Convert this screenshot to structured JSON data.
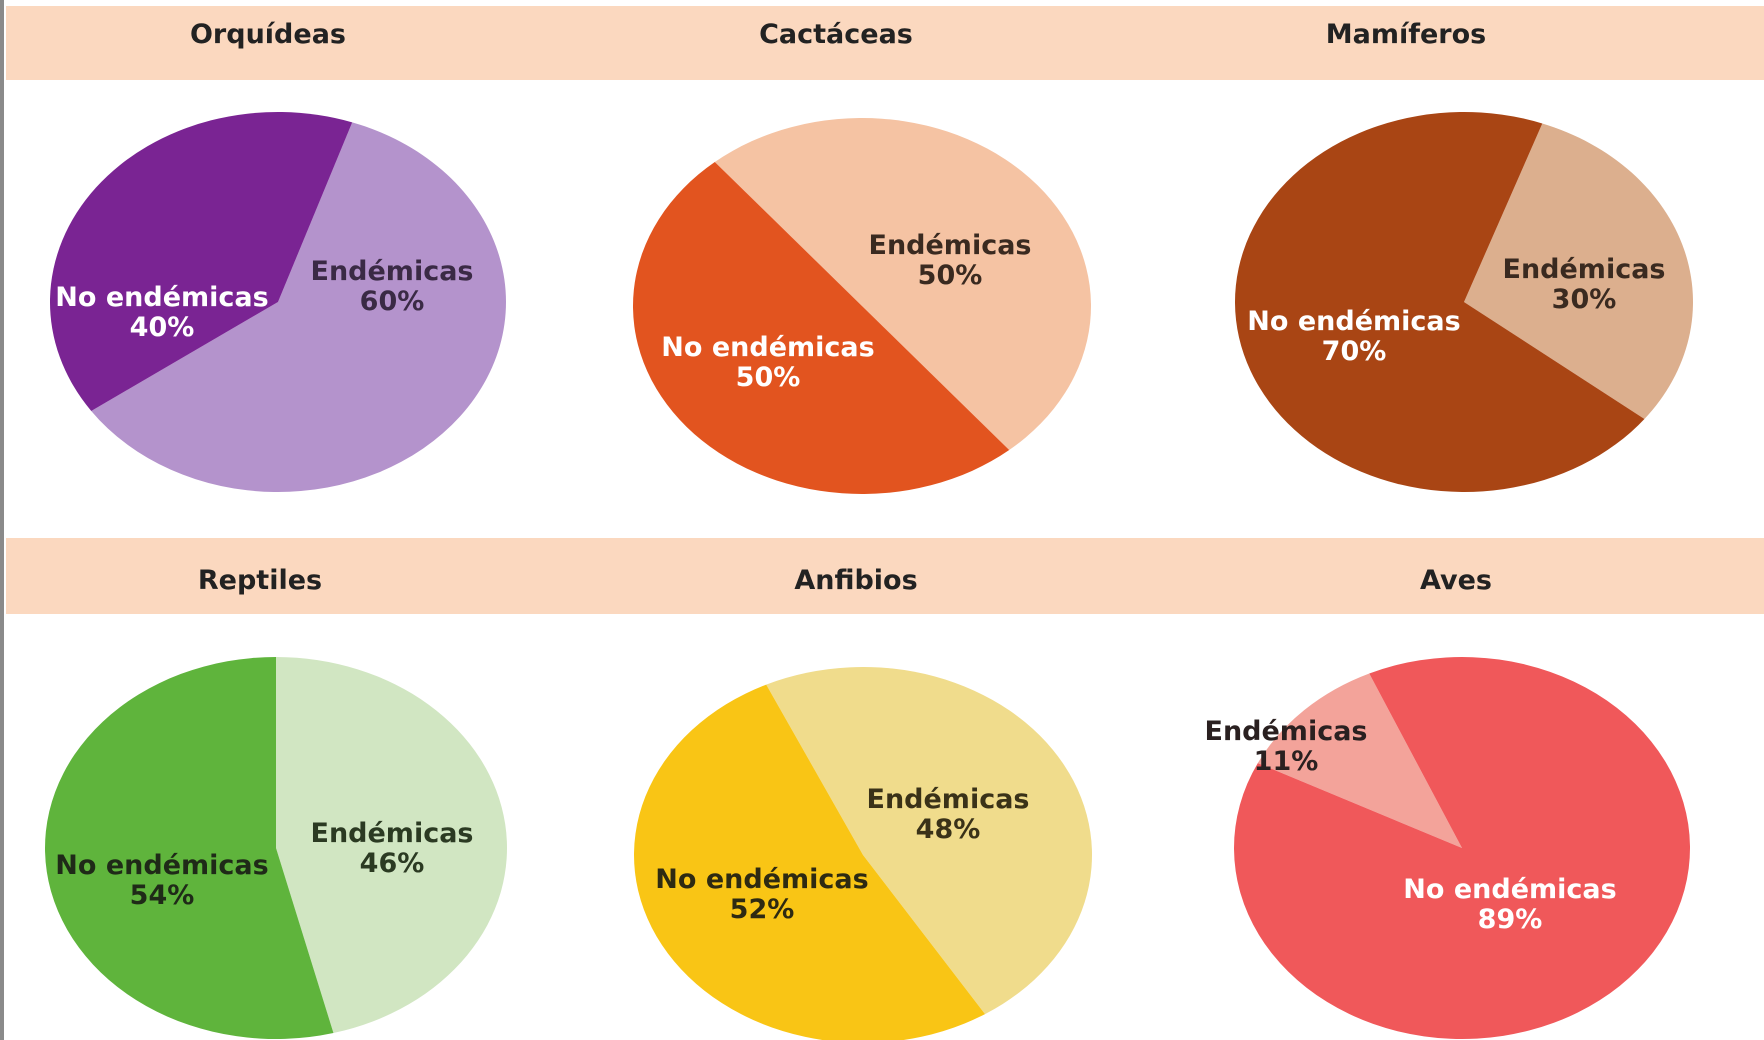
{
  "chart_data": [
    {
      "type": "pie",
      "title": "Orquídeas",
      "slices": [
        {
          "label": "Endémicas",
          "value": 60,
          "value_text": "60%",
          "color": "#b493cc",
          "text_color": "#3a2a45"
        },
        {
          "label": "No endémicas",
          "value": 40,
          "value_text": "40%",
          "color": "#7a2493",
          "text_color": "#ffffff"
        }
      ]
    },
    {
      "type": "pie",
      "title": "Cactáceas",
      "slices": [
        {
          "label": "Endémicas",
          "value": 50,
          "value_text": "50%",
          "color": "#f5c3a3",
          "text_color": "#3a2a20"
        },
        {
          "label": "No endémicas",
          "value": 50,
          "value_text": "50%",
          "color": "#e2541f",
          "text_color": "#ffffff"
        }
      ]
    },
    {
      "type": "pie",
      "title": "Mamíferos",
      "slices": [
        {
          "label": "Endémicas",
          "value": 30,
          "value_text": "30%",
          "color": "#dcaf8e",
          "text_color": "#3a2a20"
        },
        {
          "label": "No endémicas",
          "value": 70,
          "value_text": "70%",
          "color": "#a94514",
          "text_color": "#ffffff"
        }
      ]
    },
    {
      "type": "pie",
      "title": "Reptiles",
      "slices": [
        {
          "label": "Endémicas",
          "value": 46,
          "value_text": "46%",
          "color": "#d1e6c2",
          "text_color": "#2b3a22"
        },
        {
          "label": "No endémicas",
          "value": 54,
          "value_text": "54%",
          "color": "#5fb43c",
          "text_color": "#1f2a18"
        }
      ]
    },
    {
      "type": "pie",
      "title": "Anfibios",
      "slices": [
        {
          "label": "Endémicas",
          "value": 48,
          "value_text": "48%",
          "color": "#f0dc8c",
          "text_color": "#3a3218"
        },
        {
          "label": "No endémicas",
          "value": 52,
          "value_text": "52%",
          "color": "#f9c515",
          "text_color": "#2e2a12"
        }
      ]
    },
    {
      "type": "pie",
      "title": "Aves",
      "slices": [
        {
          "label": "Endémicas",
          "value": 11,
          "value_text": "11%",
          "color": "#f3a39a",
          "text_color": "#2a2020"
        },
        {
          "label": "No endémicas",
          "value": 89,
          "value_text": "89%",
          "color": "#f0585a",
          "text_color": "#ffffff"
        }
      ]
    }
  ],
  "colors": {
    "header_band": "#fbd8bf"
  }
}
